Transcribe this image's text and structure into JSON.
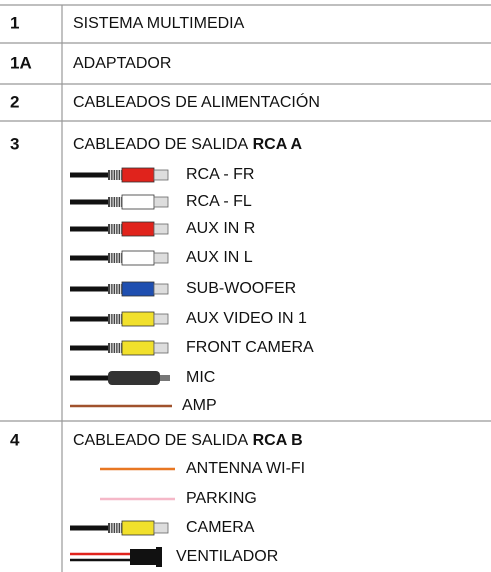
{
  "table": {
    "rows": [
      {
        "number": "1",
        "label": "SISTEMA MULTIMEDIA"
      },
      {
        "number": "1A",
        "label": "ADAPTADOR"
      },
      {
        "number": "2",
        "label": "CABLEADOS DE ALIMENTACIÓN"
      },
      {
        "number": "3",
        "label": "CABLEADO DE SALIDA",
        "label_bold": "RCA A",
        "items": [
          "RCA - FR",
          "RCA - FL",
          "AUX IN R",
          "AUX IN L",
          "SUB-WOOFER",
          "AUX VIDEO IN 1",
          "FRONT CAMERA",
          "MIC",
          "AMP"
        ]
      },
      {
        "number": "4",
        "label": "CABLEADO DE SALIDA",
        "label_bold": "RCA B",
        "items": [
          "ANTENNA WI-FI",
          "PARKING",
          "CAMERA",
          "VENTILADOR"
        ]
      }
    ]
  }
}
